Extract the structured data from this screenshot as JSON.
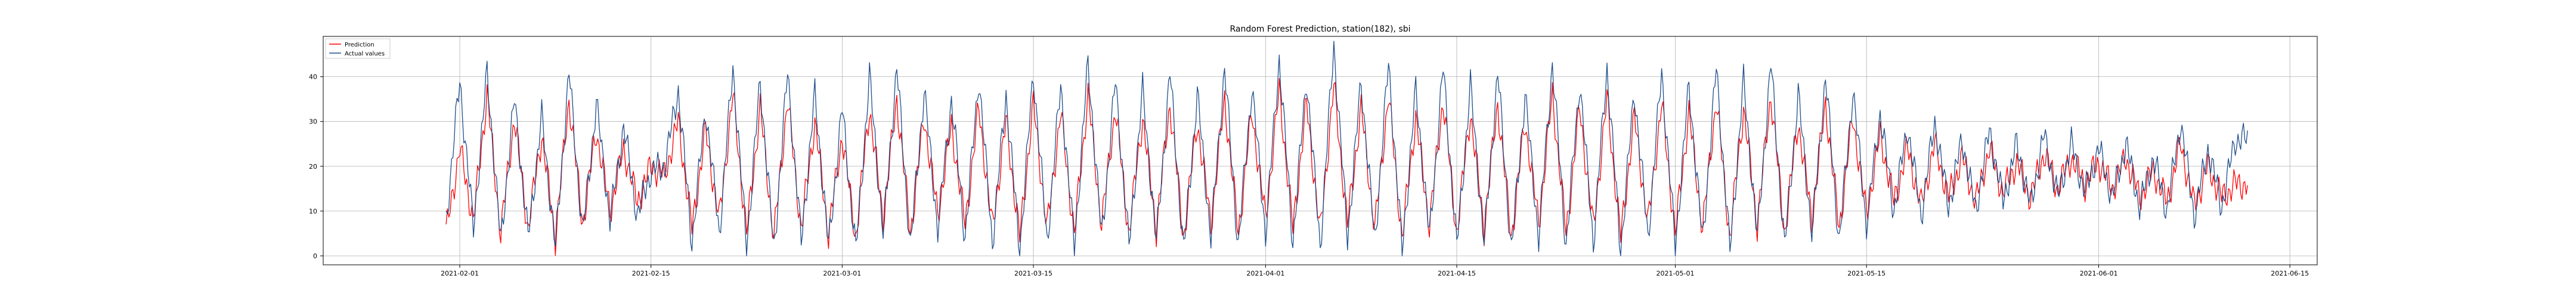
{
  "chart_data": {
    "type": "line",
    "title": "Random Forest Prediction, station(182), sbi",
    "xlabel": "",
    "ylabel": "",
    "x_range": [
      "2021-01-22",
      "2021-06-17"
    ],
    "ylim": [
      -2,
      49
    ],
    "grid": true,
    "legend_position": "top-left",
    "x_ticks": [
      "2021-02-01",
      "2021-02-15",
      "2021-03-01",
      "2021-03-15",
      "2021-04-01",
      "2021-04-15",
      "2021-05-01",
      "2021-05-15",
      "2021-06-01",
      "2021-06-15"
    ],
    "y_ticks": [
      0,
      10,
      20,
      30,
      40
    ],
    "series": [
      {
        "name": "Prediction",
        "color": "#ff0000",
        "points": [
          [
            "2021-01-31",
            5
          ],
          [
            "2021-02-01",
            24
          ],
          [
            "2021-02-02",
            8
          ],
          [
            "2021-02-03",
            36
          ],
          [
            "2021-02-04",
            5
          ],
          [
            "2021-02-05",
            31
          ],
          [
            "2021-02-06",
            6
          ],
          [
            "2021-02-07",
            27
          ],
          [
            "2021-02-08",
            4
          ],
          [
            "2021-02-09",
            35
          ],
          [
            "2021-02-10",
            7
          ],
          [
            "2021-02-11",
            28
          ],
          [
            "2021-02-12",
            10
          ],
          [
            "2021-02-13",
            24
          ],
          [
            "2021-02-14",
            12
          ],
          [
            "2021-02-15",
            20
          ],
          [
            "2021-02-16",
            18
          ],
          [
            "2021-02-17",
            30
          ],
          [
            "2021-02-18",
            6
          ],
          [
            "2021-02-19",
            28
          ],
          [
            "2021-02-20",
            8
          ],
          [
            "2021-02-21",
            36
          ],
          [
            "2021-02-22",
            5
          ],
          [
            "2021-02-23",
            33
          ],
          [
            "2021-02-24",
            4
          ],
          [
            "2021-02-25",
            35
          ],
          [
            "2021-02-26",
            6
          ],
          [
            "2021-02-27",
            30
          ],
          [
            "2021-02-28",
            5
          ],
          [
            "2021-03-01",
            27
          ],
          [
            "2021-03-02",
            4
          ],
          [
            "2021-03-03",
            33
          ],
          [
            "2021-03-04",
            8
          ],
          [
            "2021-03-05",
            35
          ],
          [
            "2021-03-06",
            5
          ],
          [
            "2021-03-07",
            31
          ],
          [
            "2021-03-08",
            9
          ],
          [
            "2021-03-09",
            29
          ],
          [
            "2021-03-10",
            7
          ],
          [
            "2021-03-11",
            33
          ],
          [
            "2021-03-12",
            6
          ],
          [
            "2021-03-13",
            30
          ],
          [
            "2021-03-14",
            4
          ],
          [
            "2021-03-15",
            34
          ],
          [
            "2021-03-16",
            6
          ],
          [
            "2021-03-17",
            32
          ],
          [
            "2021-03-18",
            5
          ],
          [
            "2021-03-19",
            36
          ],
          [
            "2021-03-20",
            7
          ],
          [
            "2021-03-21",
            33
          ],
          [
            "2021-03-22",
            5
          ],
          [
            "2021-03-23",
            31
          ],
          [
            "2021-03-24",
            6
          ],
          [
            "2021-03-25",
            34
          ],
          [
            "2021-03-26",
            4
          ],
          [
            "2021-03-27",
            30
          ],
          [
            "2021-03-28",
            7
          ],
          [
            "2021-03-29",
            35
          ],
          [
            "2021-03-30",
            5
          ],
          [
            "2021-03-31",
            32
          ],
          [
            "2021-04-01",
            8
          ],
          [
            "2021-04-02",
            37
          ],
          [
            "2021-04-03",
            6
          ],
          [
            "2021-04-04",
            34
          ],
          [
            "2021-04-05",
            5
          ],
          [
            "2021-04-06",
            38
          ],
          [
            "2021-04-07",
            7
          ],
          [
            "2021-04-08",
            33
          ],
          [
            "2021-04-09",
            6
          ],
          [
            "2021-04-10",
            36
          ],
          [
            "2021-04-11",
            4
          ],
          [
            "2021-04-12",
            31
          ],
          [
            "2021-04-13",
            7
          ],
          [
            "2021-04-14",
            35
          ],
          [
            "2021-04-15",
            5
          ],
          [
            "2021-04-16",
            32
          ],
          [
            "2021-04-17",
            6
          ],
          [
            "2021-04-18",
            34
          ],
          [
            "2021-04-19",
            4
          ],
          [
            "2021-04-20",
            30
          ],
          [
            "2021-04-21",
            7
          ],
          [
            "2021-04-22",
            36
          ],
          [
            "2021-04-23",
            5
          ],
          [
            "2021-04-24",
            33
          ],
          [
            "2021-04-25",
            6
          ],
          [
            "2021-04-26",
            35
          ],
          [
            "2021-04-27",
            4
          ],
          [
            "2021-04-28",
            31
          ],
          [
            "2021-04-29",
            7
          ],
          [
            "2021-04-30",
            34
          ],
          [
            "2021-05-01",
            5
          ],
          [
            "2021-05-02",
            32
          ],
          [
            "2021-05-03",
            6
          ],
          [
            "2021-05-04",
            35
          ],
          [
            "2021-05-05",
            4
          ],
          [
            "2021-05-06",
            33
          ],
          [
            "2021-05-07",
            7
          ],
          [
            "2021-05-08",
            36
          ],
          [
            "2021-05-09",
            5
          ],
          [
            "2021-05-10",
            30
          ],
          [
            "2021-05-11",
            8
          ],
          [
            "2021-05-12",
            34
          ],
          [
            "2021-05-13",
            6
          ],
          [
            "2021-05-14",
            31
          ],
          [
            "2021-05-15",
            9
          ],
          [
            "2021-05-16",
            27
          ],
          [
            "2021-05-17",
            12
          ],
          [
            "2021-05-18",
            24
          ],
          [
            "2021-05-19",
            11
          ],
          [
            "2021-05-20",
            25
          ],
          [
            "2021-05-21",
            13
          ],
          [
            "2021-05-22",
            22
          ],
          [
            "2021-05-23",
            12
          ],
          [
            "2021-05-24",
            24
          ],
          [
            "2021-05-25",
            14
          ],
          [
            "2021-05-26",
            21
          ],
          [
            "2021-05-27",
            13
          ],
          [
            "2021-05-28",
            23
          ],
          [
            "2021-05-29",
            15
          ],
          [
            "2021-05-30",
            22
          ],
          [
            "2021-05-31",
            16
          ],
          [
            "2021-06-01",
            21
          ],
          [
            "2021-06-02",
            15
          ],
          [
            "2021-06-03",
            22
          ],
          [
            "2021-06-04",
            13
          ],
          [
            "2021-06-05",
            19
          ],
          [
            "2021-06-06",
            12
          ],
          [
            "2021-06-07",
            25
          ],
          [
            "2021-06-08",
            11
          ],
          [
            "2021-06-09",
            20
          ],
          [
            "2021-06-10",
            13
          ],
          [
            "2021-06-11",
            16
          ]
        ]
      },
      {
        "name": "Actual values",
        "color": "#1f4e8c",
        "points": [
          [
            "2021-01-31",
            8
          ],
          [
            "2021-02-01",
            39
          ],
          [
            "2021-02-02",
            6
          ],
          [
            "2021-02-03",
            41
          ],
          [
            "2021-02-04",
            3
          ],
          [
            "2021-02-05",
            35
          ],
          [
            "2021-02-06",
            4
          ],
          [
            "2021-02-07",
            31
          ],
          [
            "2021-02-08",
            2
          ],
          [
            "2021-02-09",
            41
          ],
          [
            "2021-02-10",
            5
          ],
          [
            "2021-02-11",
            34
          ],
          [
            "2021-02-12",
            8
          ],
          [
            "2021-02-13",
            29
          ],
          [
            "2021-02-14",
            9
          ],
          [
            "2021-02-15",
            19
          ],
          [
            "2021-02-16",
            20
          ],
          [
            "2021-02-17",
            37
          ],
          [
            "2021-02-18",
            3
          ],
          [
            "2021-02-19",
            33
          ],
          [
            "2021-02-20",
            5
          ],
          [
            "2021-02-21",
            42
          ],
          [
            "2021-02-22",
            2
          ],
          [
            "2021-02-23",
            39
          ],
          [
            "2021-02-24",
            1
          ],
          [
            "2021-02-25",
            41
          ],
          [
            "2021-02-26",
            3
          ],
          [
            "2021-02-27",
            36
          ],
          [
            "2021-02-28",
            2
          ],
          [
            "2021-03-01",
            33
          ],
          [
            "2021-03-02",
            1
          ],
          [
            "2021-03-03",
            40
          ],
          [
            "2021-03-04",
            5
          ],
          [
            "2021-03-05",
            42
          ],
          [
            "2021-03-06",
            2
          ],
          [
            "2021-03-07",
            37
          ],
          [
            "2021-03-08",
            6
          ],
          [
            "2021-03-09",
            35
          ],
          [
            "2021-03-10",
            4
          ],
          [
            "2021-03-11",
            40
          ],
          [
            "2021-03-12",
            3
          ],
          [
            "2021-03-13",
            36
          ],
          [
            "2021-03-14",
            1
          ],
          [
            "2021-03-15",
            41
          ],
          [
            "2021-03-16",
            3
          ],
          [
            "2021-03-17",
            38
          ],
          [
            "2021-03-18",
            2
          ],
          [
            "2021-03-19",
            43
          ],
          [
            "2021-03-20",
            4
          ],
          [
            "2021-03-21",
            39
          ],
          [
            "2021-03-22",
            2
          ],
          [
            "2021-03-23",
            37
          ],
          [
            "2021-03-24",
            3
          ],
          [
            "2021-03-25",
            41
          ],
          [
            "2021-03-26",
            1
          ],
          [
            "2021-03-27",
            36
          ],
          [
            "2021-03-28",
            4
          ],
          [
            "2021-03-29",
            42
          ],
          [
            "2021-03-30",
            2
          ],
          [
            "2021-03-31",
            38
          ],
          [
            "2021-04-01",
            5
          ],
          [
            "2021-04-02",
            44
          ],
          [
            "2021-04-03",
            3
          ],
          [
            "2021-04-04",
            40
          ],
          [
            "2021-04-05",
            2
          ],
          [
            "2021-04-06",
            47
          ],
          [
            "2021-04-07",
            4
          ],
          [
            "2021-04-08",
            39
          ],
          [
            "2021-04-09",
            3
          ],
          [
            "2021-04-10",
            43
          ],
          [
            "2021-04-11",
            1
          ],
          [
            "2021-04-12",
            37
          ],
          [
            "2021-04-13",
            4
          ],
          [
            "2021-04-14",
            42
          ],
          [
            "2021-04-15",
            2
          ],
          [
            "2021-04-16",
            38
          ],
          [
            "2021-04-17",
            3
          ],
          [
            "2021-04-18",
            41
          ],
          [
            "2021-04-19",
            1
          ],
          [
            "2021-04-20",
            36
          ],
          [
            "2021-04-21",
            4
          ],
          [
            "2021-04-22",
            43
          ],
          [
            "2021-04-23",
            2
          ],
          [
            "2021-04-24",
            39
          ],
          [
            "2021-04-25",
            3
          ],
          [
            "2021-04-26",
            42
          ],
          [
            "2021-04-27",
            1
          ],
          [
            "2021-04-28",
            37
          ],
          [
            "2021-04-29",
            4
          ],
          [
            "2021-04-30",
            41
          ],
          [
            "2021-05-01",
            2
          ],
          [
            "2021-05-02",
            38
          ],
          [
            "2021-05-03",
            3
          ],
          [
            "2021-05-04",
            42
          ],
          [
            "2021-05-05",
            1
          ],
          [
            "2021-05-06",
            39
          ],
          [
            "2021-05-07",
            4
          ],
          [
            "2021-05-08",
            43
          ],
          [
            "2021-05-09",
            2
          ],
          [
            "2021-05-10",
            36
          ],
          [
            "2021-05-11",
            5
          ],
          [
            "2021-05-12",
            40
          ],
          [
            "2021-05-13",
            3
          ],
          [
            "2021-05-14",
            37
          ],
          [
            "2021-05-15",
            7
          ],
          [
            "2021-05-16",
            32
          ],
          [
            "2021-05-17",
            10
          ],
          [
            "2021-05-18",
            29
          ],
          [
            "2021-05-19",
            9
          ],
          [
            "2021-05-20",
            30
          ],
          [
            "2021-05-21",
            11
          ],
          [
            "2021-05-22",
            26
          ],
          [
            "2021-05-23",
            10
          ],
          [
            "2021-05-24",
            28
          ],
          [
            "2021-05-25",
            12
          ],
          [
            "2021-05-26",
            25
          ],
          [
            "2021-05-27",
            11
          ],
          [
            "2021-05-28",
            27
          ],
          [
            "2021-05-29",
            13
          ],
          [
            "2021-05-30",
            25
          ],
          [
            "2021-05-31",
            14
          ],
          [
            "2021-06-01",
            24
          ],
          [
            "2021-06-02",
            13
          ],
          [
            "2021-06-03",
            25
          ],
          [
            "2021-06-04",
            11
          ],
          [
            "2021-06-05",
            22
          ],
          [
            "2021-06-06",
            10
          ],
          [
            "2021-06-07",
            30
          ],
          [
            "2021-06-08",
            9
          ],
          [
            "2021-06-09",
            24
          ],
          [
            "2021-06-10",
            11
          ],
          [
            "2021-06-11",
            26
          ]
        ]
      }
    ]
  }
}
